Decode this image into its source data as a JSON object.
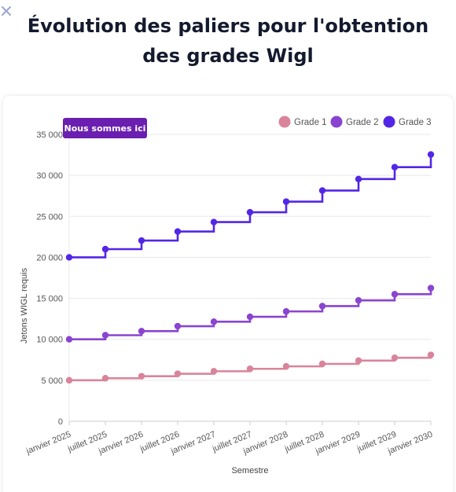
{
  "modal": {
    "title": "Évolution des paliers pour l'obtention des grades Wigl",
    "close_icon": "close-icon"
  },
  "colors": {
    "grade1": "#d9849b",
    "grade2": "#8a44d0",
    "grade3": "#5326e6",
    "badge": "#6a1fb0"
  },
  "badge": {
    "label": "Nous sommes ici"
  },
  "chart_data": {
    "type": "line",
    "step": true,
    "title": "",
    "xlabel": "Semestre",
    "ylabel": "Jetons WIGL requis",
    "ylim": [
      0,
      35000
    ],
    "yticks": [
      0,
      5000,
      10000,
      15000,
      20000,
      25000,
      30000,
      35000
    ],
    "ytick_labels": [
      "0",
      "5 000",
      "10 000",
      "15 000",
      "20 000",
      "25 000",
      "30 000",
      "35 000"
    ],
    "grid": true,
    "legend_position": "top-right",
    "categories": [
      "janvier 2025",
      "juillet 2025",
      "janvier 2026",
      "juillet 2026",
      "janvier 2027",
      "juillet 2027",
      "janvier 2028",
      "juillet 2028",
      "janvier 2029",
      "juillet 2029",
      "janvier 2030"
    ],
    "series": [
      {
        "name": "Grade 1",
        "color_key": "grade1",
        "values": [
          5000,
          5250,
          5500,
          5800,
          6100,
          6400,
          6700,
          7000,
          7400,
          7750,
          8100
        ]
      },
      {
        "name": "Grade 2",
        "color_key": "grade2",
        "values": [
          10000,
          10500,
          11000,
          11600,
          12150,
          12750,
          13400,
          14050,
          14750,
          15500,
          16250
        ]
      },
      {
        "name": "Grade 3",
        "color_key": "grade3",
        "values": [
          20000,
          21000,
          22050,
          23150,
          24300,
          25500,
          26800,
          28150,
          29550,
          31000,
          32550
        ]
      }
    ]
  }
}
